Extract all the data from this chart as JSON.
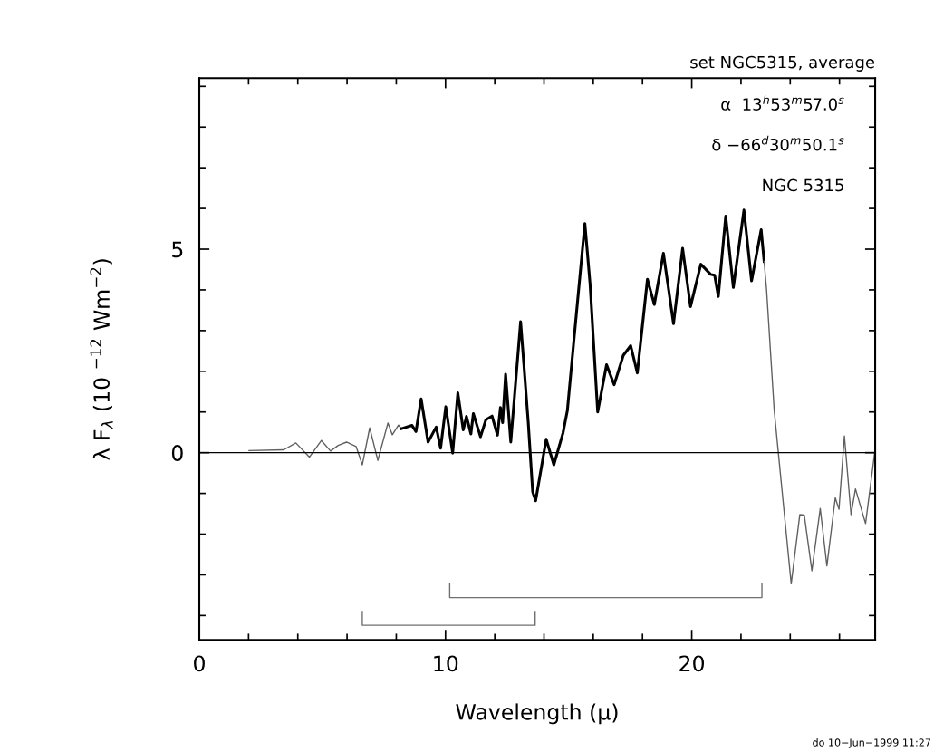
{
  "chart_data": {
    "type": "line",
    "xlabel": "Wavelength (μ)",
    "ylabel": "λ F$_{λ}$ (10 $^{−12}$ Wm$^{−2}$)",
    "series": [
      {
        "color": "#606060",
        "x": [
          2.02,
          3.43,
          3.92,
          4.47,
          4.96,
          5.33,
          5.64,
          5.98,
          6.37,
          6.62,
          6.92,
          7.25,
          7.66,
          7.84,
          8.09,
          8.21
        ],
        "values": [
          0.05,
          0.07,
          0.24,
          -0.11,
          0.3,
          0.04,
          0.18,
          0.26,
          0.15,
          -0.3,
          0.61,
          -0.19,
          0.73,
          0.44,
          0.68,
          0.59
        ]
      },
      {
        "color": "#000000",
        "x": [
          8.21,
          8.64,
          8.8,
          9.01,
          9.29,
          9.62,
          9.8,
          10.01,
          10.29,
          10.5,
          10.72,
          10.85,
          11.03,
          11.13,
          11.42,
          11.64,
          11.89,
          12.11,
          12.23,
          12.32,
          12.44,
          12.65,
          13.05,
          13.36,
          13.54,
          13.66,
          14.09,
          14.4,
          14.77,
          14.95,
          15.2,
          15.66,
          15.87,
          16.18,
          16.54,
          16.85,
          17.22,
          17.52,
          17.79,
          18.2,
          18.48,
          18.85,
          19.26,
          19.63,
          19.95,
          20.37,
          20.77,
          20.93,
          21.08,
          21.38,
          21.69,
          22.12,
          22.43,
          22.82,
          22.94
        ],
        "values": [
          0.59,
          0.67,
          0.52,
          1.32,
          0.26,
          0.63,
          0.11,
          1.13,
          -0.01,
          1.47,
          0.56,
          0.89,
          0.46,
          0.96,
          0.39,
          0.81,
          0.9,
          0.43,
          1.11,
          0.74,
          1.93,
          0.26,
          3.22,
          0.74,
          -0.96,
          -1.18,
          0.33,
          -0.3,
          0.48,
          1.04,
          2.67,
          5.63,
          4.15,
          1.0,
          2.16,
          1.67,
          2.39,
          2.63,
          1.96,
          4.26,
          3.64,
          4.9,
          3.17,
          5.02,
          3.59,
          4.63,
          4.38,
          4.36,
          3.84,
          5.81,
          4.06,
          5.96,
          4.22,
          5.48,
          4.7
        ]
      },
      {
        "color": "#606060",
        "x": [
          22.94,
          23.04,
          23.35,
          23.65,
          24.04,
          24.39,
          24.57,
          24.88,
          25.22,
          25.49,
          25.83,
          25.98,
          26.2,
          26.47,
          26.65,
          27.06,
          27.43
        ],
        "values": [
          4.7,
          4.0,
          1.04,
          -0.82,
          -3.22,
          -1.52,
          -1.53,
          -2.9,
          -1.37,
          -2.78,
          -1.11,
          -1.39,
          0.41,
          -1.52,
          -0.89,
          -1.74,
          0
        ]
      },
      {
        "color": "#707070",
        "x": [
          6.62,
          6.62,
          13.64,
          13.64
        ],
        "values": [
          -3.9,
          -4.24,
          -4.24,
          -3.9
        ]
      },
      {
        "color": "#707070",
        "x": [
          10.17,
          10.17,
          22.85,
          22.85
        ],
        "values": [
          -3.22,
          -3.56,
          -3.56,
          -3.22
        ]
      }
    ],
    "xlim": [
      0,
      27.45
    ],
    "ylim": [
      -4.6,
      9.2
    ],
    "xticks": [
      0,
      {
        "value": 2,
        "label": null
      },
      {
        "value": 4,
        "label": null
      },
      {
        "value": 6,
        "label": null
      },
      {
        "value": 8,
        "label": null
      },
      10,
      {
        "value": 12,
        "label": null
      },
      {
        "value": 14,
        "label": null
      },
      {
        "value": 16,
        "label": null
      },
      {
        "value": 18,
        "label": null
      },
      20,
      {
        "value": 22,
        "label": null
      },
      {
        "value": 24,
        "label": null
      },
      {
        "value": 26,
        "label": null
      }
    ],
    "yticks": [
      {
        "value": -4,
        "label": null
      },
      {
        "value": -3,
        "label": null
      },
      {
        "value": -2,
        "label": null
      },
      {
        "value": -1,
        "label": null
      },
      0,
      {
        "value": 1,
        "label": null
      },
      {
        "value": 2,
        "label": null
      },
      {
        "value": 3,
        "label": null
      },
      {
        "value": 4,
        "label": null
      },
      5,
      {
        "value": 6,
        "label": null
      },
      {
        "value": 7,
        "label": null
      },
      {
        "value": 8,
        "label": null
      },
      {
        "value": 9,
        "label": null
      }
    ],
    "ref_lines": [
      {
        "axis": "y",
        "value": 0,
        "color": "#000000"
      }
    ],
    "annotations": [
      "set NGC5315, average",
      "α  13$^{h}$53$^{m}$57.0$^{s}$",
      "δ −66$^{d}$30$^{m}$50.1$^{s}$",
      "NGC 5315",
      "do 10−Jun−1999 11:27"
    ],
    "grid": false,
    "legend": false,
    "marker": "none",
    "line_style": "solid"
  }
}
